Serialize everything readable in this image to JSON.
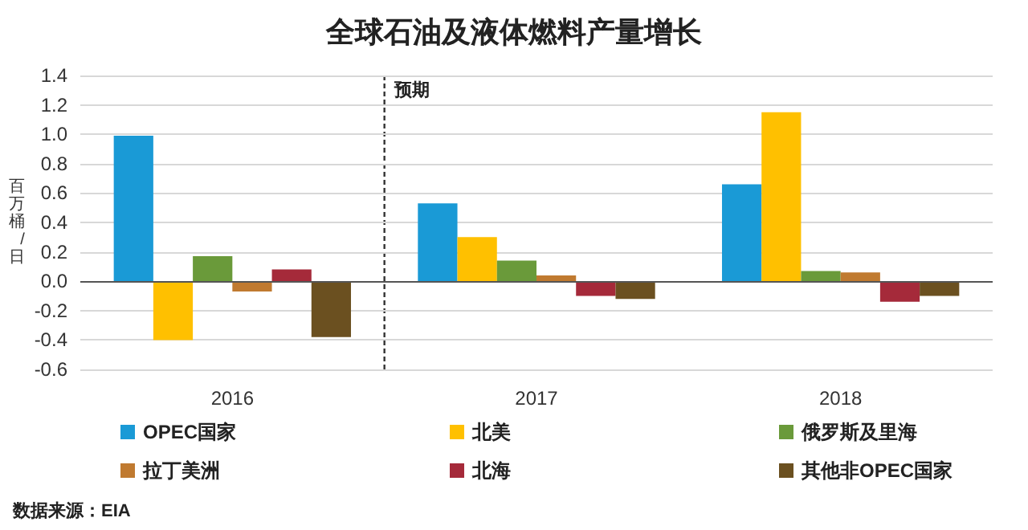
{
  "chart_data": {
    "type": "bar",
    "title": "全球石油及液体燃料产量增长",
    "ylabel": "百万桶/日",
    "categories": [
      "2016",
      "2017",
      "2018"
    ],
    "series": [
      {
        "name": "OPEC国家",
        "color": "#1a9ad6",
        "values": [
          0.99,
          0.53,
          0.66
        ]
      },
      {
        "name": "北美",
        "color": "#ffc000",
        "values": [
          -0.4,
          0.3,
          1.15
        ]
      },
      {
        "name": "俄罗斯及里海",
        "color": "#6a9a3a",
        "values": [
          0.17,
          0.14,
          0.07
        ]
      },
      {
        "name": "拉丁美洲",
        "color": "#c07a30",
        "values": [
          -0.07,
          0.04,
          0.06
        ]
      },
      {
        "name": "北海",
        "color": "#a52a3a",
        "values": [
          0.08,
          -0.1,
          -0.14
        ]
      },
      {
        "name": "其他非OPEC国家",
        "color": "#6b5020",
        "values": [
          -0.38,
          -0.12,
          -0.1
        ]
      }
    ],
    "ylim": [
      -0.6,
      1.4
    ],
    "yticks": [
      -0.6,
      -0.4,
      -0.2,
      {
        "value": 0,
        "label": "0.0"
      },
      0.2,
      0.4,
      0.6,
      0.8,
      {
        "value": 1,
        "label": "1.0"
      },
      1.2,
      1.4
    ],
    "grid": "y",
    "legend": "bottom",
    "ref_lines": [
      {
        "axis": "x",
        "value": "2017",
        "label": "预期",
        "line_style": "dashed"
      }
    ],
    "annotations": [
      "数据来源：EIA"
    ]
  }
}
